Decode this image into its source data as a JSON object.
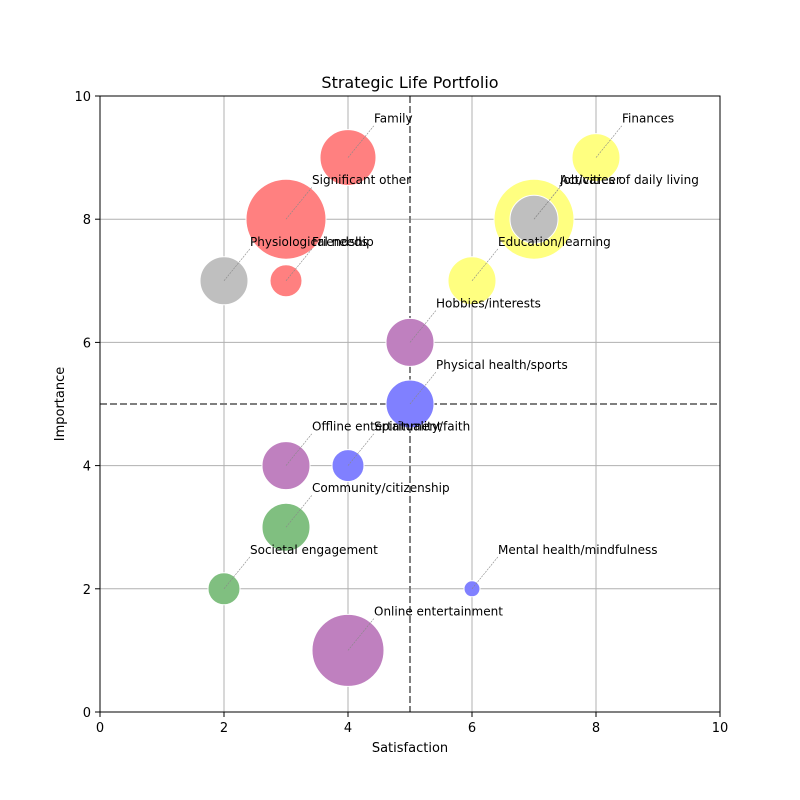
{
  "chart_data": {
    "type": "scatter",
    "title": "Strategic Life Portfolio",
    "xlabel": "Satisfaction",
    "ylabel": "Importance",
    "xlim": [
      0,
      10
    ],
    "ylim": [
      0,
      10
    ],
    "xticks": [
      0,
      2,
      4,
      6,
      8,
      10
    ],
    "yticks": [
      0,
      2,
      4,
      6,
      8,
      10
    ],
    "grid": true,
    "reference_lines": {
      "x": 5,
      "y": 5,
      "style": "dashed"
    },
    "colors": {
      "red": "#ff8080",
      "yellow": "#ffff80",
      "gray": "#bfbfbf",
      "purple": "#bf80bf",
      "blue": "#8080ff",
      "green": "#80bf80"
    },
    "points": [
      {
        "label": "Family",
        "x": 4,
        "y": 9,
        "size": 70,
        "color": "red"
      },
      {
        "label": "Significant other",
        "x": 3,
        "y": 8,
        "size": 100,
        "color": "red"
      },
      {
        "label": "Friendship",
        "x": 3,
        "y": 7,
        "size": 40,
        "color": "red"
      },
      {
        "label": "Physiological needs",
        "x": 2,
        "y": 7,
        "size": 60,
        "color": "gray"
      },
      {
        "label": "Finances",
        "x": 8,
        "y": 9,
        "size": 60,
        "color": "yellow"
      },
      {
        "label": "Job/career",
        "x": 7,
        "y": 8,
        "size": 100,
        "color": "yellow"
      },
      {
        "label": "Activities of daily living",
        "x": 7,
        "y": 8,
        "size": 60,
        "color": "gray"
      },
      {
        "label": "Education/learning",
        "x": 6,
        "y": 7,
        "size": 60,
        "color": "yellow"
      },
      {
        "label": "Hobbies/interests",
        "x": 5,
        "y": 6,
        "size": 60,
        "color": "purple"
      },
      {
        "label": "Physical health/sports",
        "x": 5,
        "y": 5,
        "size": 60,
        "color": "blue"
      },
      {
        "label": "Offline entertainment",
        "x": 3,
        "y": 4,
        "size": 60,
        "color": "purple"
      },
      {
        "label": "Spirituality/faith",
        "x": 4,
        "y": 4,
        "size": 40,
        "color": "blue"
      },
      {
        "label": "Community/citizenship",
        "x": 3,
        "y": 3,
        "size": 60,
        "color": "green"
      },
      {
        "label": "Societal engagement",
        "x": 2,
        "y": 2,
        "size": 40,
        "color": "green"
      },
      {
        "label": "Mental health/mindfulness",
        "x": 6,
        "y": 2,
        "size": 20,
        "color": "blue"
      },
      {
        "label": "Online entertainment",
        "x": 4,
        "y": 1,
        "size": 90,
        "color": "purple"
      }
    ]
  }
}
